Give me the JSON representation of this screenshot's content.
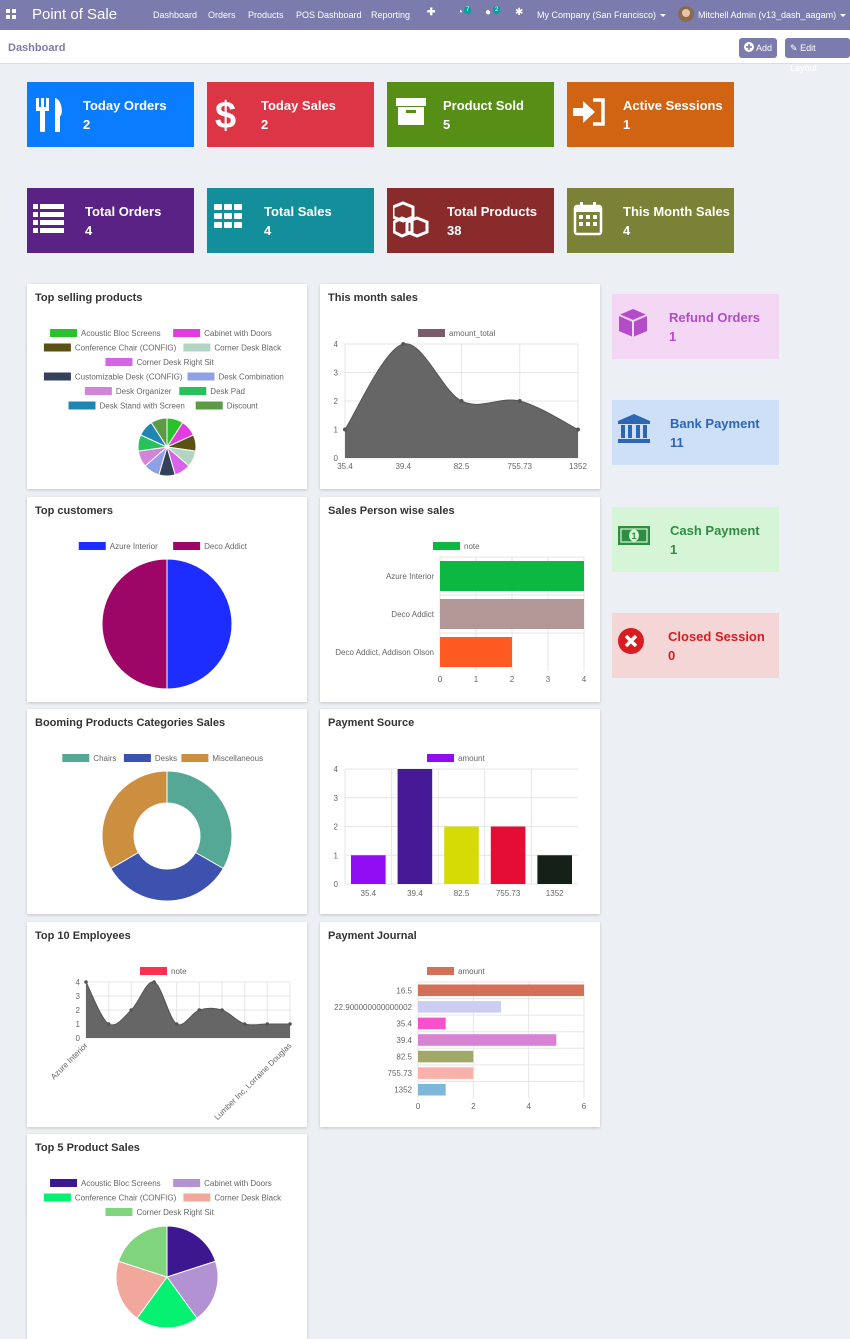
{
  "navbar": {
    "app_title": "Point of Sale",
    "menu": [
      "Dashboard",
      "Orders",
      "Products",
      "POS Dashboard",
      "Reporting"
    ],
    "activity_count": "7",
    "message_count": "2",
    "company": "My Company (San Francisco)",
    "user": "Mitchell Admin (v13_dash_aagam)"
  },
  "control": {
    "breadcrumb": "Dashboard",
    "add_label": "Add",
    "edit_layout_label": "Edit Layout"
  },
  "tiles": [
    {
      "label": "Today Orders",
      "value": "2",
      "color": "#0a7cff",
      "icon": "fork-knife-icon"
    },
    {
      "label": "Today Sales",
      "value": "2",
      "color": "#dc3545",
      "icon": "dollar-icon"
    },
    {
      "label": "Product Sold",
      "value": "5",
      "color": "#578e16",
      "icon": "archive-icon"
    },
    {
      "label": "Active Sessions",
      "value": "1",
      "color": "#d06412",
      "icon": "sign-in-icon"
    },
    {
      "label": "Total Orders",
      "value": "4",
      "color": "#5a2284",
      "icon": "list-icon"
    },
    {
      "label": "Total Sales",
      "value": "4",
      "color": "#138f9c",
      "icon": "grid-icon"
    },
    {
      "label": "Total Products",
      "value": "38",
      "color": "#8a2b2b",
      "icon": "cubes-icon"
    },
    {
      "label": "This Month Sales",
      "value": "4",
      "color": "#7b8136",
      "icon": "calendar-icon"
    }
  ],
  "right_tiles": [
    {
      "label": "Refund Orders",
      "value": "1",
      "bg": "#f4d7f5",
      "fg": "#b44cc8",
      "icon": "cube-icon"
    },
    {
      "label": "Bank Payment",
      "value": "11",
      "bg": "#cde0f7",
      "fg": "#2d66b5",
      "icon": "bank-icon"
    },
    {
      "label": "Cash Payment",
      "value": "1",
      "bg": "#d6f5d6",
      "fg": "#2f8d43",
      "icon": "money-icon"
    },
    {
      "label": "Closed Session",
      "value": "0",
      "bg": "#f5d6d7",
      "fg": "#d91c21",
      "icon": "close-circle-icon"
    }
  ],
  "cards": {
    "top_selling": "Top selling products",
    "month_sales": "This month sales",
    "top_customers": "Top customers",
    "salesperson": "Sales Person wise sales",
    "booming": "Booming Products Categories Sales",
    "payment_source": "Payment Source",
    "employees": "Top 10 Employees",
    "payment_journal": "Payment Journal",
    "top5": "Top 5 Product Sales"
  },
  "chart_data": [
    {
      "id": "top_selling",
      "type": "pie",
      "title": "Top selling products",
      "categories": [
        "Acoustic Bloc Screens",
        "Cabinet with Doors",
        "Conference Chair (CONFIG)",
        "Corner Desk Black",
        "Corner Desk Right Sit",
        "Customizable Desk (CONFIG)",
        "Desk Combination",
        "Desk Organizer",
        "Desk Pad",
        "Desk Stand with Screen",
        "Discount"
      ],
      "values": [
        1,
        1,
        1,
        1,
        1,
        1,
        1,
        1,
        1,
        1,
        1
      ],
      "colors": [
        "#29c22a",
        "#e23be0",
        "#595214",
        "#b3d4c2",
        "#d764e8",
        "#334159",
        "#8fa0e7",
        "#d184d9",
        "#27c35a",
        "#2185b3",
        "#5c9a44"
      ]
    },
    {
      "id": "month_sales",
      "type": "area",
      "title": "This month sales",
      "legend": "amount_total",
      "legend_color": "#7d5a6a",
      "x": [
        "35.4",
        "39.4",
        "82.5",
        "755.73",
        "1352"
      ],
      "values": [
        1,
        4,
        2,
        2,
        1
      ],
      "ylim": [
        0,
        4
      ],
      "yticks": [
        0,
        1,
        2,
        3,
        4
      ]
    },
    {
      "id": "top_customers",
      "type": "pie",
      "title": "Top customers",
      "categories": [
        "Azure Interior",
        "Deco Addict"
      ],
      "values": [
        1,
        1
      ],
      "colors": [
        "#1d2cff",
        "#9d0566"
      ]
    },
    {
      "id": "salesperson",
      "type": "bar",
      "orientation": "horizontal",
      "title": "Sales Person wise sales",
      "legend": "note",
      "legend_color": "#0cb841",
      "categories": [
        "Azure Interior",
        "Deco Addict",
        "Deco Addict, Addison Olson"
      ],
      "values": [
        4,
        4,
        2
      ],
      "colors": [
        "#0cb841",
        "#b39797",
        "#ff5a21"
      ],
      "xlim": [
        0,
        4
      ],
      "xticks": [
        0,
        1,
        2,
        3,
        4
      ]
    },
    {
      "id": "booming",
      "type": "pie",
      "donut": true,
      "title": "Booming Products Categories Sales",
      "categories": [
        "Chairs",
        "Desks",
        "Miscellaneous"
      ],
      "values": [
        1,
        1,
        1
      ],
      "colors": [
        "#55a896",
        "#3c52ae",
        "#cc8f40"
      ]
    },
    {
      "id": "payment_source",
      "type": "bar",
      "title": "Payment Source",
      "legend": "amount",
      "legend_color": "#8f0cf3",
      "categories": [
        "35.4",
        "39.4",
        "82.5",
        "755.73",
        "1352"
      ],
      "values": [
        1,
        4,
        2,
        2,
        1
      ],
      "colors": [
        "#8f0cf3",
        "#461a96",
        "#d6db05",
        "#e50d35",
        "#152019"
      ],
      "ylim": [
        0,
        4
      ],
      "yticks": [
        0,
        1,
        2,
        3,
        4
      ]
    },
    {
      "id": "employees",
      "type": "area",
      "title": "Top 10 Employees",
      "legend": "note",
      "legend_color": "#ff3050",
      "x_labels": [
        "Azure Interior",
        "Lumber Inc, Lorraine Douglas"
      ],
      "values": [
        4,
        1,
        2,
        4,
        1,
        2,
        2,
        1,
        1,
        1
      ],
      "ylim": [
        0,
        4
      ],
      "yticks": [
        0,
        1,
        2,
        3,
        4
      ]
    },
    {
      "id": "payment_journal",
      "type": "bar",
      "orientation": "horizontal",
      "title": "Payment Journal",
      "legend": "amount",
      "legend_color": "#d27058",
      "categories": [
        "16.5",
        "22.900000000000002",
        "35.4",
        "39.4",
        "82.5",
        "755.73",
        "1352"
      ],
      "values": [
        6,
        3,
        1,
        5,
        2,
        2,
        1
      ],
      "colors": [
        "#d27058",
        "#cdcdf1",
        "#f752c9",
        "#d882d3",
        "#a0a966",
        "#f9b1a9",
        "#7fb7d8"
      ],
      "xlim": [
        0,
        6
      ],
      "xticks": [
        0,
        2,
        4,
        6
      ]
    },
    {
      "id": "top5",
      "type": "pie",
      "title": "Top 5 Product Sales",
      "categories": [
        "Acoustic Bloc Screens",
        "Cabinet with Doors",
        "Conference Chair (CONFIG)",
        "Corner Desk Black",
        "Corner Desk Right Sit"
      ],
      "values": [
        1,
        1,
        1,
        1,
        1
      ],
      "colors": [
        "#3d178f",
        "#b292d3",
        "#06f072",
        "#f2a79c",
        "#81d47e"
      ]
    }
  ]
}
